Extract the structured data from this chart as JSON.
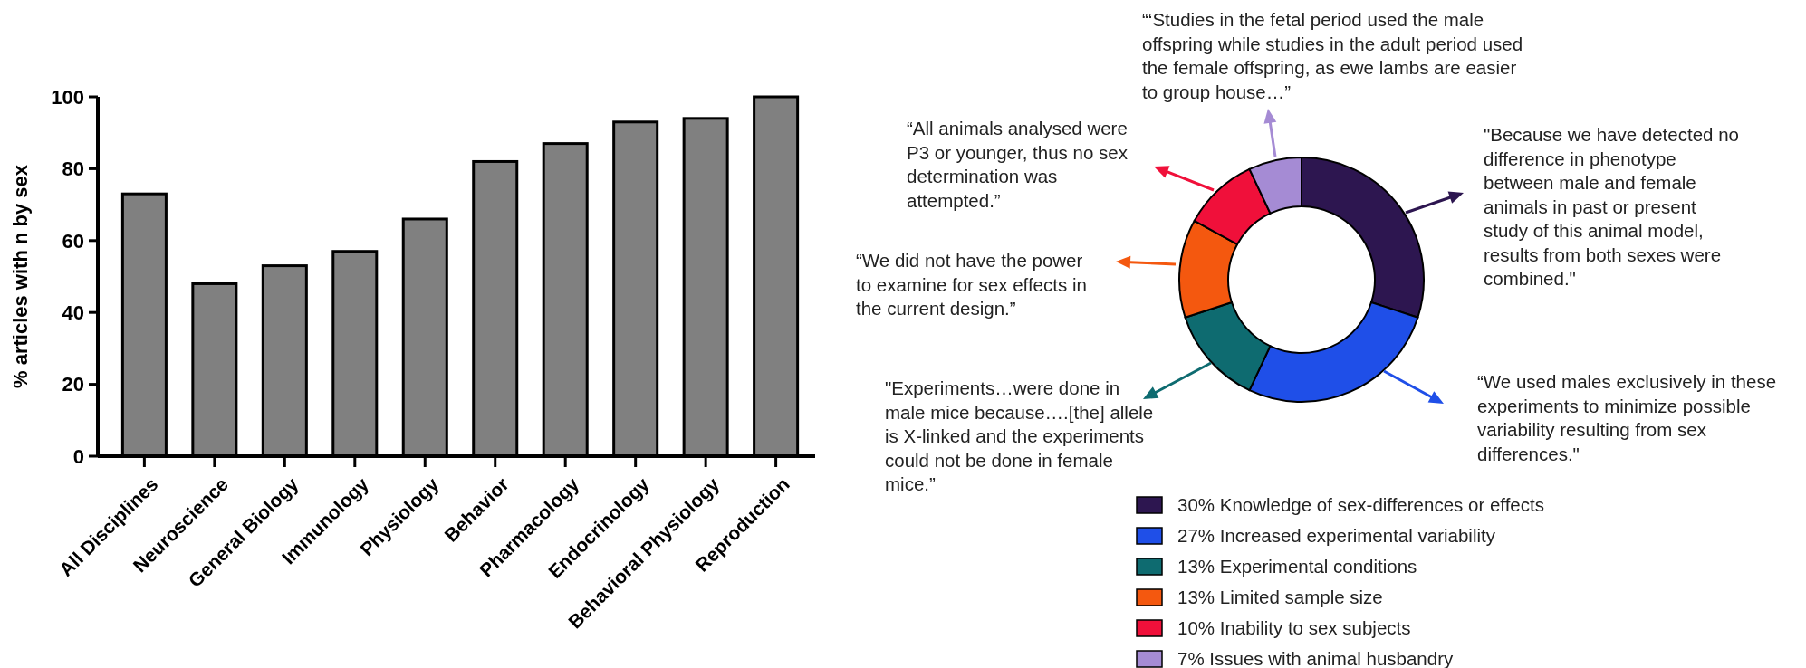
{
  "chart_data": [
    {
      "type": "bar",
      "ylabel": "% articles with n by sex",
      "categories": [
        "All Disciplines",
        "Neuroscience",
        "General Biology",
        "Immunology",
        "Physiology",
        "Behavior",
        "Pharmacology",
        "Endocrinology",
        "Behavioral Physiology",
        "Reproduction"
      ],
      "values": [
        73,
        48,
        53,
        57,
        66,
        82,
        87,
        93,
        94,
        100
      ],
      "color": "#808080",
      "ylim": [
        0,
        100
      ],
      "yticks": [
        0,
        20,
        40,
        60,
        80,
        100
      ],
      "grid": false
    },
    {
      "type": "donut",
      "categories": [
        "30% Knowledge of sex-differences or effects",
        "27% Increased experimental variability",
        "13% Experimental conditions",
        "13% Limited sample size",
        "10% Inability to sex subjects",
        "7% Issues with animal husbandry"
      ],
      "values": [
        30,
        27,
        13,
        13,
        10,
        7
      ],
      "colors": [
        "#2d1650",
        "#1f4fe8",
        "#0e6b70",
        "#f4580f",
        "#f0103a",
        "#a58bd4"
      ],
      "legend": "bottom",
      "annotations": [
        "\"Because we have detected no difference in phenotype between male and female animals in past or present study of this animal model, results from both sexes were combined.\"",
        "“We used males exclusively in these experiments to minimize possible variability resulting from sex differences.\"",
        "\"Experiments…were done in male mice because….[the] allele is X-linked and the experiments could not be done in female mice.”",
        "“We did not have the power to examine for sex effects in the current design.”",
        "“All animals analysed were P3 or younger, thus no sex determination was attempted.”",
        "“‘Studies in the fetal period used the male offspring while studies in the adult period used the female offspring, as ewe lambs are easier to group house…”"
      ]
    }
  ]
}
